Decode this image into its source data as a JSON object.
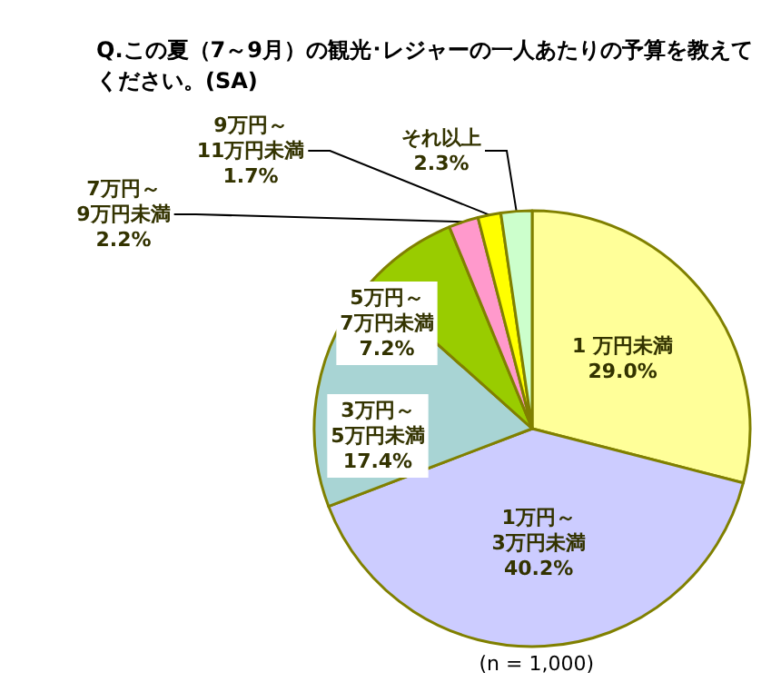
{
  "chart_data": {
    "type": "pie",
    "title": "Q.この夏（7～9月）の観光･レジャーの一人あたりの予算を教えてください。(SA)",
    "categories": [
      "1 万円未満",
      "1万円～3万円未満",
      "3万円～5万円未満",
      "5万円～7万円未満",
      "7万円～9万円未満",
      "9万円～11万円未満",
      "それ以上"
    ],
    "values": [
      29.0,
      40.2,
      17.4,
      7.2,
      2.2,
      1.7,
      2.3
    ],
    "value_labels": [
      "29.0%",
      "40.2%",
      "17.4%",
      "7.2%",
      "2.2%",
      "1.7%",
      "2.3%"
    ],
    "colors": [
      "#ffff99",
      "#ccccff",
      "#a8d4d4",
      "#99cc00",
      "#ff99cc",
      "#ffff00",
      "#ccffcc"
    ],
    "annotations": [
      "(n = 1,000)"
    ]
  }
}
